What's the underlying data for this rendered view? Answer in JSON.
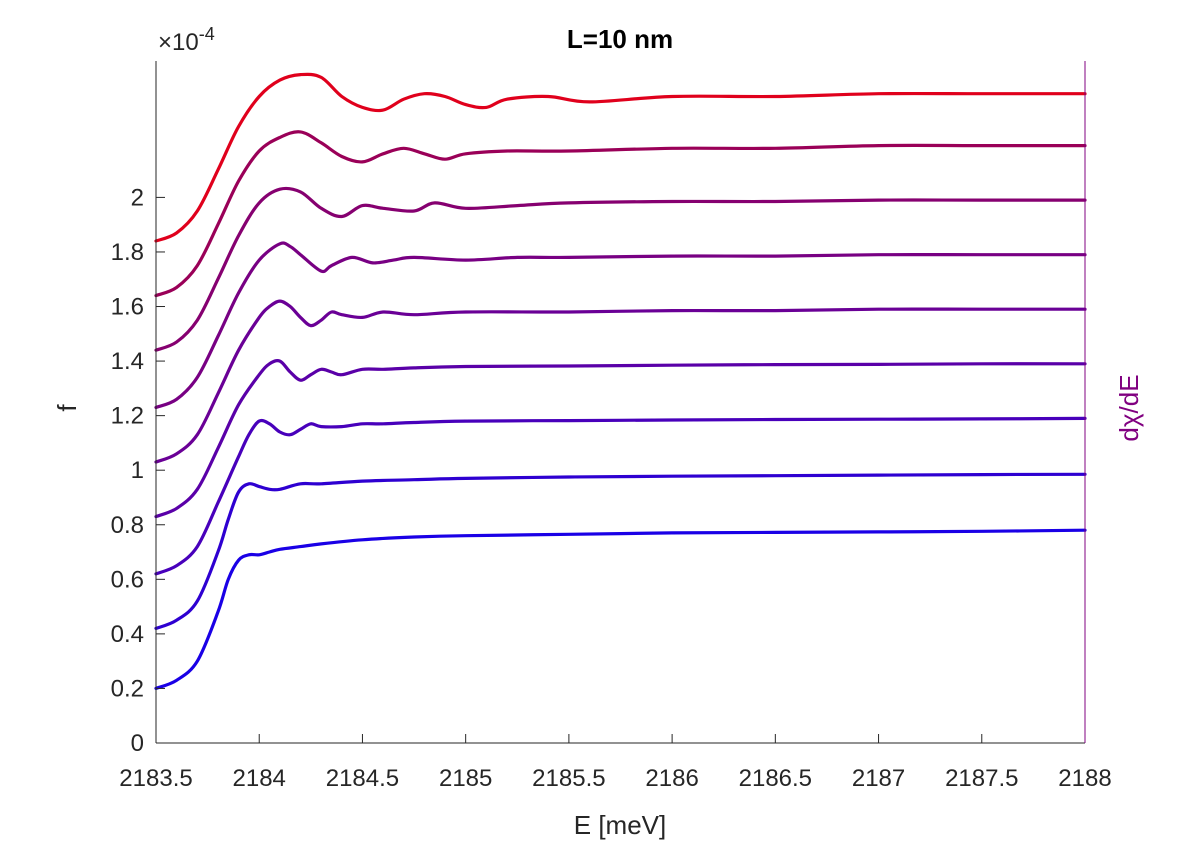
{
  "chart_data": {
    "type": "line",
    "title": "L=10 nm",
    "xlabel": "E [meV]",
    "ylabel": "f",
    "right_ylabel": "dχ/dE",
    "y_exponent": {
      "base": "×10",
      "power": "-4"
    },
    "xlim": [
      2183.5,
      2188
    ],
    "ylim": [
      0,
      2.5
    ],
    "x_ticks": [
      2183.5,
      2184,
      2184.5,
      2185,
      2185.5,
      2186,
      2186.5,
      2187,
      2187.5,
      2188
    ],
    "x_tick_labels": [
      "2183.5",
      "2184",
      "2184.5",
      "2185",
      "2185.5",
      "2186",
      "2186.5",
      "2187",
      "2187.5",
      "2188"
    ],
    "y_ticks": [
      0,
      0.2,
      0.4,
      0.6,
      0.8,
      1,
      1.2,
      1.4,
      1.6,
      1.8,
      2
    ],
    "y_tick_labels": [
      "0",
      "0.2",
      "0.4",
      "0.6",
      "0.8",
      "1",
      "1.2",
      "1.4",
      "1.6",
      "1.8",
      "2"
    ],
    "grid": false,
    "right_axis_color": "#800080",
    "series": [
      {
        "color": "#1a00e6",
        "x": [
          2183.5,
          2183.6,
          2183.7,
          2183.8,
          2183.85,
          2183.9,
          2183.95,
          2184.0,
          2184.05,
          2184.1,
          2184.2,
          2184.3,
          2184.5,
          2184.75,
          2185,
          2185.5,
          2186,
          2186.5,
          2187,
          2187.5,
          2188
        ],
        "y": [
          0.2,
          0.23,
          0.3,
          0.48,
          0.6,
          0.67,
          0.69,
          0.69,
          0.7,
          0.71,
          0.72,
          0.73,
          0.745,
          0.755,
          0.76,
          0.765,
          0.77,
          0.772,
          0.774,
          0.776,
          0.78
        ]
      },
      {
        "color": "#2e00d1",
        "x": [
          2183.5,
          2183.6,
          2183.7,
          2183.8,
          2183.85,
          2183.9,
          2183.95,
          2184.0,
          2184.05,
          2184.1,
          2184.2,
          2184.3,
          2184.5,
          2184.75,
          2185,
          2185.5,
          2186,
          2186.5,
          2187,
          2187.5,
          2188
        ],
        "y": [
          0.42,
          0.45,
          0.52,
          0.7,
          0.82,
          0.92,
          0.95,
          0.94,
          0.93,
          0.93,
          0.95,
          0.95,
          0.96,
          0.965,
          0.97,
          0.975,
          0.978,
          0.98,
          0.982,
          0.984,
          0.985
        ]
      },
      {
        "color": "#4800bb",
        "x": [
          2183.5,
          2183.6,
          2183.7,
          2183.8,
          2183.9,
          2183.95,
          2184.0,
          2184.05,
          2184.1,
          2184.15,
          2184.2,
          2184.25,
          2184.3,
          2184.4,
          2184.5,
          2184.6,
          2184.75,
          2185,
          2185.5,
          2186,
          2186.5,
          2187,
          2187.5,
          2188
        ],
        "y": [
          0.62,
          0.65,
          0.72,
          0.88,
          1.05,
          1.13,
          1.18,
          1.17,
          1.14,
          1.13,
          1.15,
          1.17,
          1.16,
          1.16,
          1.17,
          1.17,
          1.175,
          1.18,
          1.182,
          1.184,
          1.186,
          1.187,
          1.188,
          1.19
        ]
      },
      {
        "color": "#5a00a8",
        "x": [
          2183.5,
          2183.6,
          2183.7,
          2183.8,
          2183.9,
          2184.0,
          2184.05,
          2184.1,
          2184.15,
          2184.2,
          2184.25,
          2184.3,
          2184.35,
          2184.4,
          2184.5,
          2184.6,
          2184.75,
          2185,
          2185.5,
          2186,
          2186.5,
          2187,
          2187.5,
          2188
        ],
        "y": [
          0.83,
          0.86,
          0.93,
          1.08,
          1.24,
          1.35,
          1.39,
          1.4,
          1.36,
          1.33,
          1.35,
          1.37,
          1.36,
          1.35,
          1.37,
          1.37,
          1.375,
          1.38,
          1.382,
          1.385,
          1.387,
          1.388,
          1.39,
          1.39
        ]
      },
      {
        "color": "#6a0096",
        "x": [
          2183.5,
          2183.6,
          2183.7,
          2183.8,
          2183.9,
          2184.0,
          2184.05,
          2184.1,
          2184.15,
          2184.2,
          2184.25,
          2184.3,
          2184.35,
          2184.4,
          2184.5,
          2184.6,
          2184.75,
          2185,
          2185.5,
          2186,
          2186.5,
          2187,
          2187.5,
          2188
        ],
        "y": [
          1.03,
          1.06,
          1.13,
          1.28,
          1.44,
          1.56,
          1.6,
          1.62,
          1.6,
          1.56,
          1.53,
          1.55,
          1.58,
          1.57,
          1.56,
          1.58,
          1.57,
          1.58,
          1.58,
          1.585,
          1.585,
          1.59,
          1.59,
          1.59
        ]
      },
      {
        "color": "#780083",
        "x": [
          2183.5,
          2183.6,
          2183.7,
          2183.8,
          2183.9,
          2184.0,
          2184.1,
          2184.15,
          2184.2,
          2184.3,
          2184.35,
          2184.45,
          2184.55,
          2184.65,
          2184.75,
          2185,
          2185.25,
          2185.5,
          2186,
          2186.5,
          2187,
          2187.5,
          2188
        ],
        "y": [
          1.23,
          1.26,
          1.34,
          1.49,
          1.65,
          1.77,
          1.83,
          1.82,
          1.79,
          1.73,
          1.75,
          1.78,
          1.76,
          1.77,
          1.78,
          1.77,
          1.78,
          1.78,
          1.785,
          1.785,
          1.79,
          1.79,
          1.79
        ]
      },
      {
        "color": "#860070",
        "x": [
          2183.5,
          2183.6,
          2183.7,
          2183.8,
          2183.9,
          2184.0,
          2184.1,
          2184.2,
          2184.3,
          2184.4,
          2184.5,
          2184.6,
          2184.75,
          2184.85,
          2185,
          2185.25,
          2185.5,
          2186,
          2186.5,
          2187,
          2187.5,
          2188
        ],
        "y": [
          1.44,
          1.47,
          1.55,
          1.7,
          1.86,
          1.98,
          2.03,
          2.02,
          1.96,
          1.93,
          1.97,
          1.96,
          1.95,
          1.98,
          1.96,
          1.97,
          1.98,
          1.985,
          1.985,
          1.99,
          1.99,
          1.99
        ]
      },
      {
        "color": "#9a0058",
        "x": [
          2183.5,
          2183.6,
          2183.7,
          2183.8,
          2183.9,
          2184.0,
          2184.1,
          2184.2,
          2184.3,
          2184.4,
          2184.5,
          2184.6,
          2184.7,
          2184.8,
          2184.9,
          2185.0,
          2185.2,
          2185.5,
          2186,
          2186.5,
          2187,
          2187.5,
          2188
        ],
        "y": [
          1.64,
          1.67,
          1.75,
          1.9,
          2.06,
          2.17,
          2.22,
          2.24,
          2.2,
          2.15,
          2.13,
          2.16,
          2.18,
          2.16,
          2.14,
          2.16,
          2.17,
          2.17,
          2.18,
          2.18,
          2.19,
          2.19,
          2.19
        ]
      },
      {
        "color": "#e0001c",
        "x": [
          2183.5,
          2183.6,
          2183.7,
          2183.8,
          2183.9,
          2184.0,
          2184.1,
          2184.2,
          2184.3,
          2184.4,
          2184.5,
          2184.6,
          2184.7,
          2184.8,
          2184.9,
          2185.0,
          2185.1,
          2185.2,
          2185.4,
          2185.6,
          2186,
          2186.5,
          2187,
          2187.5,
          2188
        ],
        "y": [
          1.84,
          1.87,
          1.95,
          2.1,
          2.26,
          2.37,
          2.43,
          2.45,
          2.44,
          2.37,
          2.33,
          2.32,
          2.36,
          2.38,
          2.37,
          2.34,
          2.33,
          2.36,
          2.37,
          2.35,
          2.37,
          2.37,
          2.38,
          2.38,
          2.38
        ]
      }
    ]
  }
}
